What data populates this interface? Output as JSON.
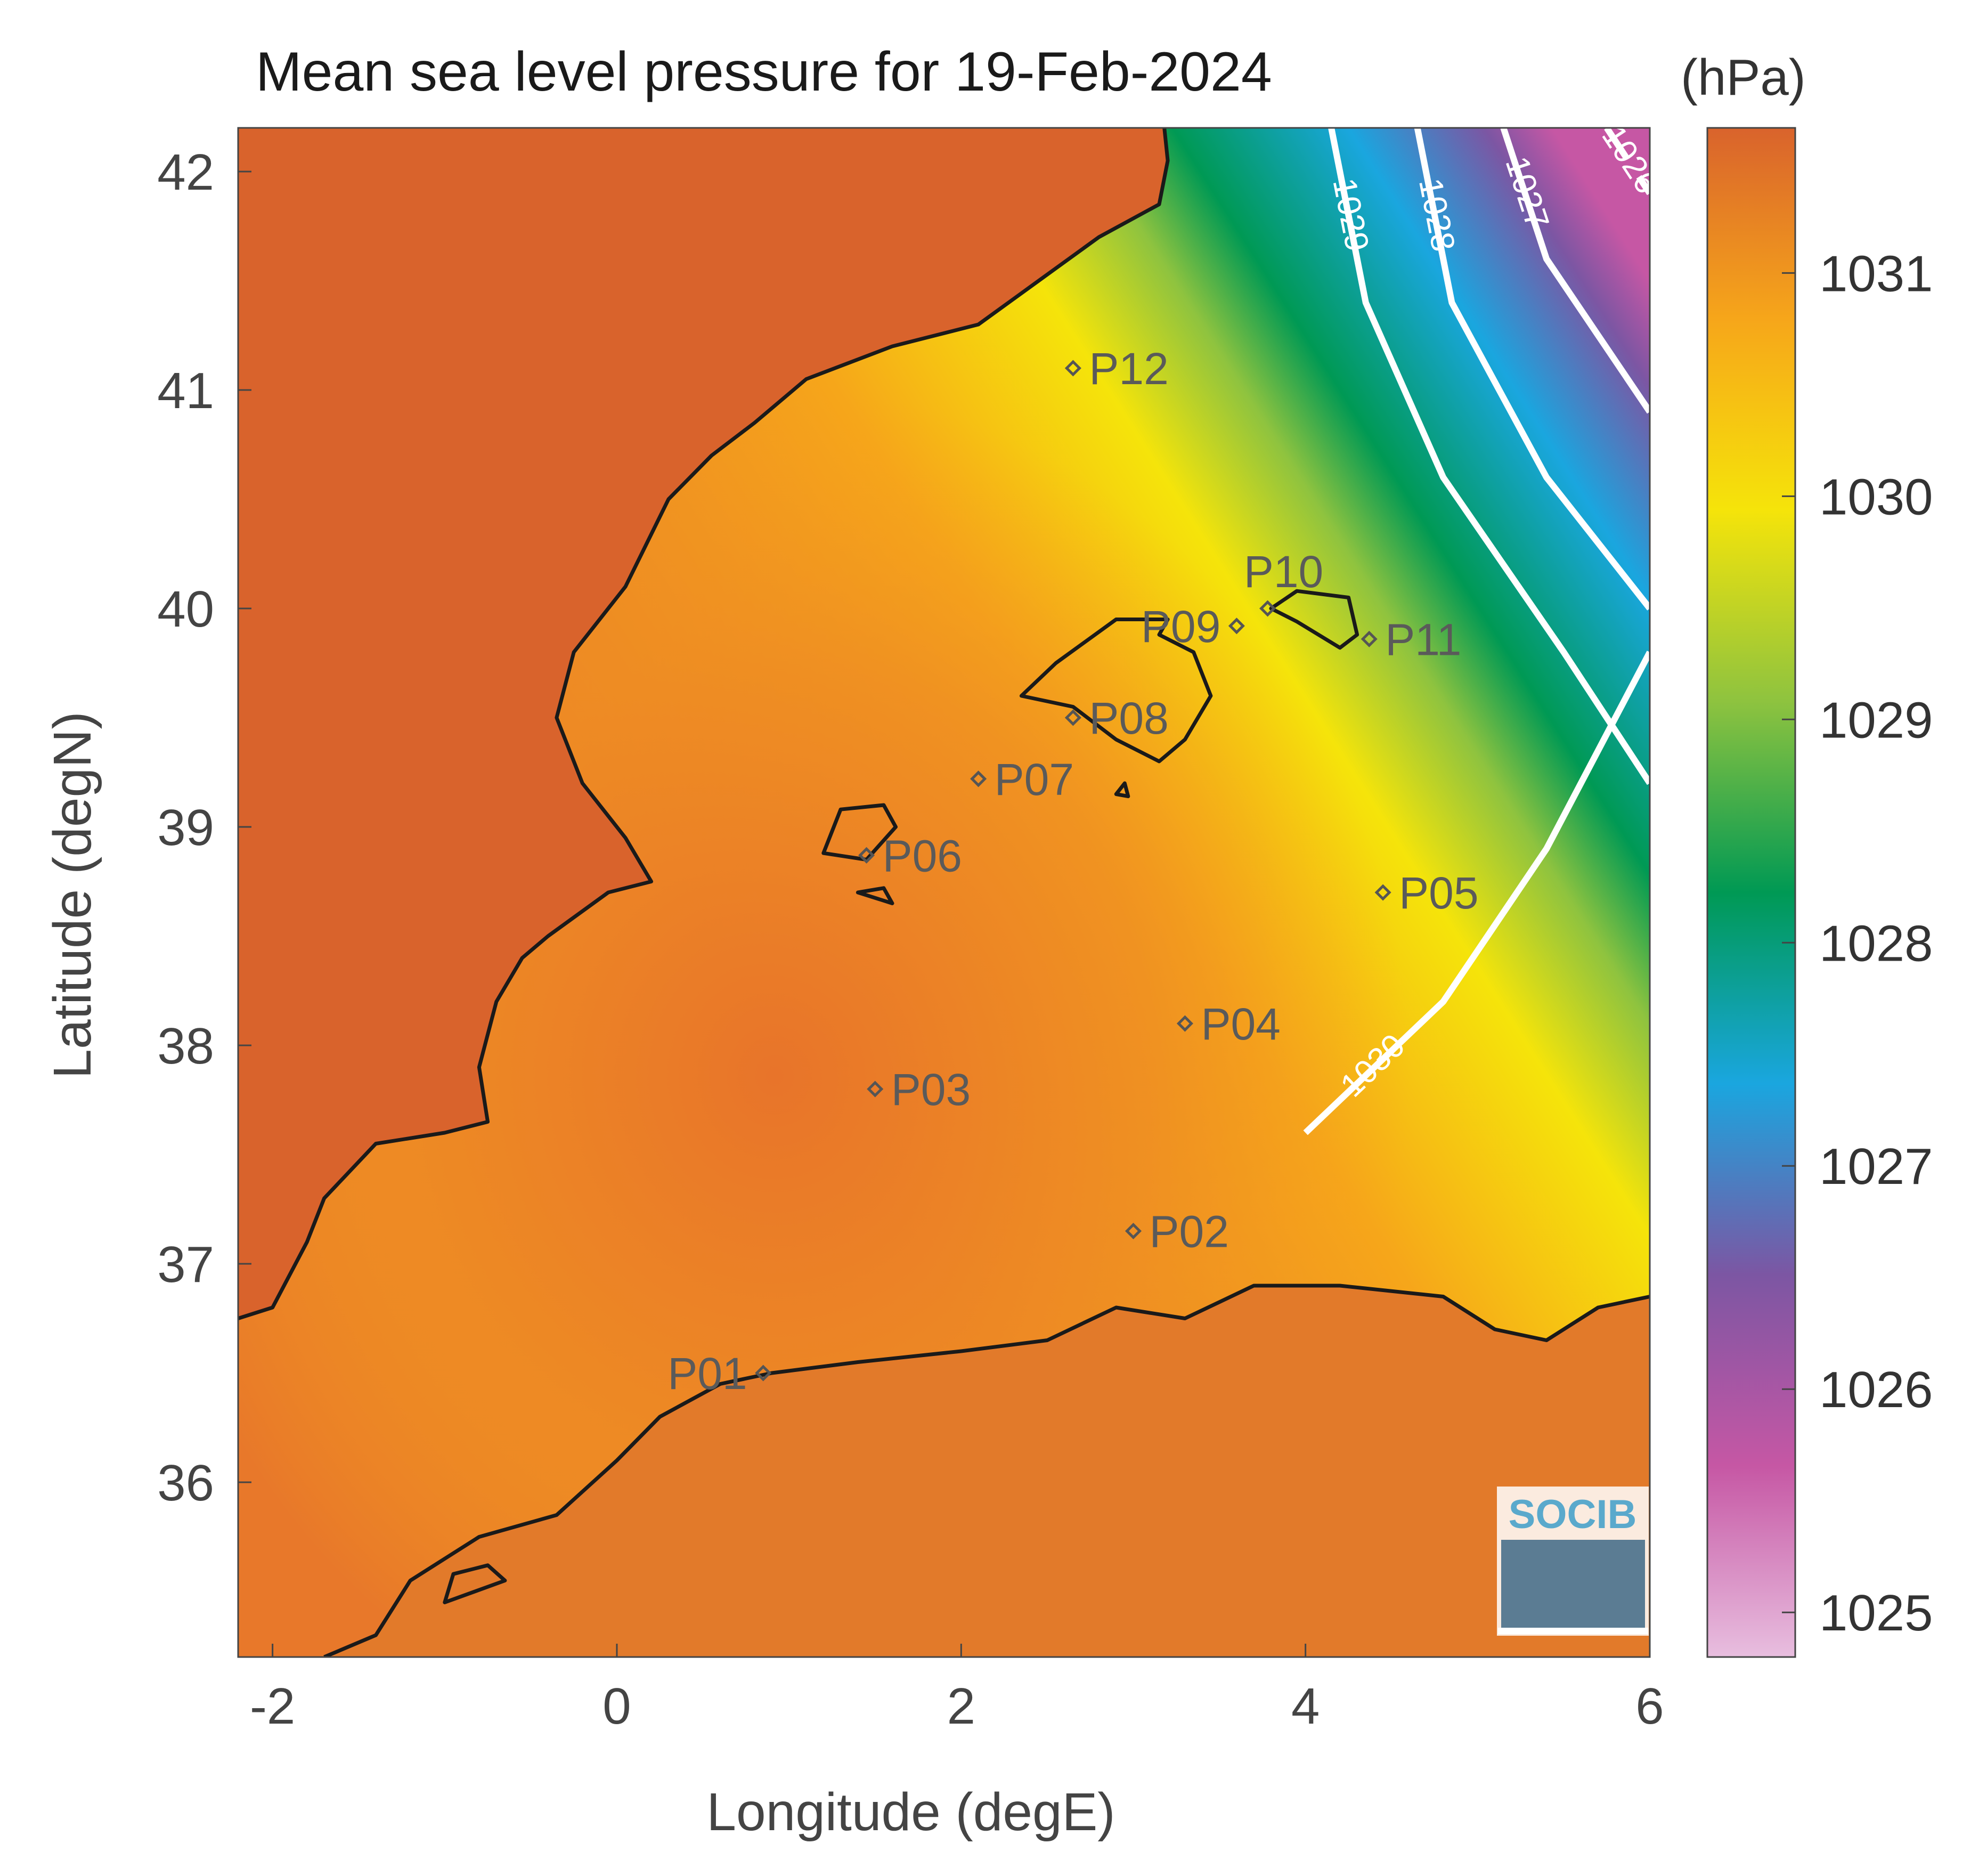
{
  "title": "Mean sea level pressure for 19-Feb-2024",
  "units_label": "(hPa)",
  "logo_text": "SOCIB",
  "x_axis": {
    "label": "Longitude (degE)",
    "range": [
      -2.2,
      6.0
    ],
    "ticks": [
      -2,
      0,
      2,
      4,
      6
    ],
    "tick_labels": [
      "-2",
      "0",
      "2",
      "4",
      "6"
    ]
  },
  "y_axis": {
    "label": "Latitude (degN)",
    "range": [
      35.2,
      42.2
    ],
    "ticks": [
      36,
      37,
      38,
      39,
      40,
      41,
      42
    ],
    "tick_labels": [
      "36",
      "37",
      "38",
      "39",
      "40",
      "41",
      "42"
    ]
  },
  "colorbar": {
    "range": [
      1024.8,
      1031.65
    ],
    "ticks": [
      1025,
      1026,
      1027,
      1028,
      1029,
      1030,
      1031
    ],
    "tick_labels": [
      "1025",
      "1026",
      "1027",
      "1028",
      "1029",
      "1030",
      "1031"
    ],
    "colors": [
      "#e8bedf",
      "#c657a4",
      "#7c56a3",
      "#1aa6df",
      "#009954",
      "#8ec33f",
      "#f5e40a",
      "#f6a61a",
      "#d9632c"
    ]
  },
  "stations": [
    {
      "name": "P01",
      "lon": 0.85,
      "lat": 36.5,
      "label_side": "left"
    },
    {
      "name": "P02",
      "lon": 3.0,
      "lat": 37.15,
      "label_side": "right"
    },
    {
      "name": "P03",
      "lon": 1.5,
      "lat": 37.8,
      "label_side": "right"
    },
    {
      "name": "P04",
      "lon": 3.3,
      "lat": 38.1,
      "label_side": "right"
    },
    {
      "name": "P05",
      "lon": 4.45,
      "lat": 38.7,
      "label_side": "right"
    },
    {
      "name": "P06",
      "lon": 1.45,
      "lat": 38.87,
      "label_side": "right"
    },
    {
      "name": "P07",
      "lon": 2.1,
      "lat": 39.22,
      "label_side": "right"
    },
    {
      "name": "P08",
      "lon": 2.65,
      "lat": 39.5,
      "label_side": "right"
    },
    {
      "name": "P09",
      "lon": 3.6,
      "lat": 39.92,
      "label_side": "left"
    },
    {
      "name": "P10",
      "lon": 3.78,
      "lat": 40.0,
      "label_side": "above"
    },
    {
      "name": "P11",
      "lon": 4.37,
      "lat": 39.86,
      "label_side": "right"
    },
    {
      "name": "P12",
      "lon": 2.65,
      "lat": 41.1,
      "label_side": "right"
    }
  ],
  "contours": [
    {
      "value": 1030,
      "label": "1030",
      "dashed": false,
      "points": [
        [
          4.0,
          37.6
        ],
        [
          4.8,
          38.2
        ],
        [
          5.4,
          38.9
        ],
        [
          5.8,
          39.5
        ],
        [
          6.0,
          39.8
        ]
      ]
    },
    {
      "value": 1029,
      "label": "1029",
      "dashed": false,
      "points": [
        [
          4.15,
          42.2
        ],
        [
          4.35,
          41.4
        ],
        [
          4.8,
          40.6
        ],
        [
          5.5,
          39.8
        ],
        [
          6.0,
          39.2
        ]
      ]
    },
    {
      "value": 1028,
      "label": "1028",
      "dashed": false,
      "points": [
        [
          4.65,
          42.2
        ],
        [
          4.85,
          41.4
        ],
        [
          5.4,
          40.6
        ],
        [
          6.0,
          40.0
        ]
      ]
    },
    {
      "value": 1027,
      "label": "1027",
      "dashed": false,
      "points": [
        [
          5.15,
          42.2
        ],
        [
          5.4,
          41.6
        ],
        [
          6.0,
          40.9
        ]
      ]
    },
    {
      "value": 1026,
      "label": "1026",
      "dashed": true,
      "points": [
        [
          5.75,
          42.2
        ],
        [
          6.0,
          41.9
        ]
      ]
    }
  ],
  "coastlines": [
    {
      "name": "iberia",
      "points": [
        [
          -2.2,
          36.75
        ],
        [
          -2.0,
          36.8
        ],
        [
          -1.8,
          37.1
        ],
        [
          -1.7,
          37.3
        ],
        [
          -1.4,
          37.55
        ],
        [
          -1.0,
          37.6
        ],
        [
          -0.75,
          37.65
        ],
        [
          -0.8,
          37.9
        ],
        [
          -0.7,
          38.2
        ],
        [
          -0.55,
          38.4
        ],
        [
          -0.4,
          38.5
        ],
        [
          -0.05,
          38.7
        ],
        [
          0.2,
          38.75
        ],
        [
          0.05,
          38.95
        ],
        [
          -0.2,
          39.2
        ],
        [
          -0.35,
          39.5
        ],
        [
          -0.25,
          39.8
        ],
        [
          0.05,
          40.1
        ],
        [
          0.3,
          40.5
        ],
        [
          0.55,
          40.7
        ],
        [
          0.8,
          40.85
        ],
        [
          1.1,
          41.05
        ],
        [
          1.6,
          41.2
        ],
        [
          2.1,
          41.3
        ],
        [
          2.45,
          41.5
        ],
        [
          2.8,
          41.7
        ],
        [
          3.15,
          41.85
        ],
        [
          3.2,
          42.05
        ],
        [
          3.18,
          42.2
        ]
      ]
    },
    {
      "name": "north-africa",
      "points": [
        [
          -1.7,
          35.2
        ],
        [
          -1.4,
          35.3
        ],
        [
          -1.2,
          35.55
        ],
        [
          -0.8,
          35.75
        ],
        [
          -0.35,
          35.85
        ],
        [
          0.0,
          36.1
        ],
        [
          0.25,
          36.3
        ],
        [
          0.6,
          36.45
        ],
        [
          0.9,
          36.5
        ],
        [
          1.4,
          36.55
        ],
        [
          2.0,
          36.6
        ],
        [
          2.5,
          36.65
        ],
        [
          2.9,
          36.8
        ],
        [
          3.3,
          36.75
        ],
        [
          3.7,
          36.9
        ],
        [
          4.2,
          36.9
        ],
        [
          4.8,
          36.85
        ],
        [
          5.1,
          36.7
        ],
        [
          5.4,
          36.65
        ],
        [
          5.7,
          36.8
        ],
        [
          6.0,
          36.85
        ]
      ]
    },
    {
      "name": "mallorca",
      "closed": true,
      "points": [
        [
          2.35,
          39.6
        ],
        [
          2.65,
          39.55
        ],
        [
          2.9,
          39.4
        ],
        [
          3.15,
          39.3
        ],
        [
          3.3,
          39.4
        ],
        [
          3.45,
          39.6
        ],
        [
          3.35,
          39.8
        ],
        [
          3.15,
          39.88
        ],
        [
          3.2,
          39.95
        ],
        [
          2.9,
          39.95
        ],
        [
          2.55,
          39.75
        ]
      ]
    },
    {
      "name": "menorca",
      "closed": true,
      "points": [
        [
          3.8,
          40.0
        ],
        [
          3.95,
          39.94
        ],
        [
          4.2,
          39.82
        ],
        [
          4.3,
          39.88
        ],
        [
          4.25,
          40.05
        ],
        [
          3.95,
          40.08
        ]
      ]
    },
    {
      "name": "ibiza",
      "closed": true,
      "points": [
        [
          1.2,
          38.88
        ],
        [
          1.45,
          38.85
        ],
        [
          1.62,
          39.0
        ],
        [
          1.55,
          39.1
        ],
        [
          1.3,
          39.08
        ]
      ]
    },
    {
      "name": "formentera",
      "closed": true,
      "points": [
        [
          1.4,
          38.7
        ],
        [
          1.6,
          38.65
        ],
        [
          1.55,
          38.72
        ]
      ]
    },
    {
      "name": "cabrera",
      "closed": true,
      "points": [
        [
          2.9,
          39.15
        ],
        [
          2.97,
          39.14
        ],
        [
          2.95,
          39.2
        ]
      ]
    },
    {
      "name": "alboran",
      "closed": true,
      "points": [
        [
          -1.0,
          35.45
        ],
        [
          -0.65,
          35.55
        ],
        [
          -0.75,
          35.62
        ],
        [
          -0.95,
          35.58
        ]
      ]
    }
  ]
}
